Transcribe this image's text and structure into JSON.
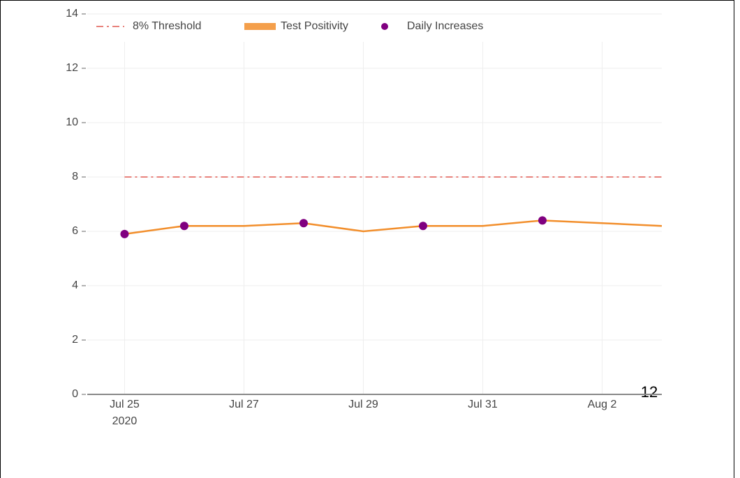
{
  "chart_data": {
    "type": "line",
    "x": [
      "2020-07-25",
      "2020-07-26",
      "2020-07-27",
      "2020-07-28",
      "2020-07-29",
      "2020-07-30",
      "2020-07-31",
      "2020-08-01",
      "2020-08-02",
      "2020-08-03"
    ],
    "series": [
      {
        "name": "8% Threshold",
        "color": "#e8827c",
        "style": "dashdot",
        "values": [
          8,
          8,
          8,
          8,
          8,
          8,
          8,
          8,
          8,
          8
        ]
      },
      {
        "name": "Test Positivity",
        "color": "#f28e2b",
        "style": "line",
        "values": [
          5.9,
          6.2,
          6.2,
          6.3,
          6.0,
          6.2,
          6.2,
          6.4,
          6.3,
          6.2
        ]
      },
      {
        "name": "Daily Increases",
        "color": "#800080",
        "style": "markers",
        "values": [
          5.9,
          6.2,
          null,
          6.3,
          null,
          6.2,
          null,
          6.4,
          null,
          null
        ]
      }
    ],
    "xlim": [
      "2020-07-24T09:00Z",
      "2020-08-03"
    ],
    "xticks": [
      {
        "value": "2020-07-25",
        "label": "Jul 25"
      },
      {
        "value": "2020-07-27",
        "label": "Jul 27"
      },
      {
        "value": "2020-07-29",
        "label": "Jul 29"
      },
      {
        "value": "2020-07-31",
        "label": "Jul 31"
      },
      {
        "value": "2020-08-02",
        "label": "Aug 2"
      }
    ],
    "x_year_label": "2020",
    "ylim": [
      0,
      14
    ],
    "yticks": [
      0,
      2,
      4,
      6,
      8,
      10,
      12,
      14
    ],
    "grid": true,
    "legend": "top",
    "annotation": "12"
  }
}
